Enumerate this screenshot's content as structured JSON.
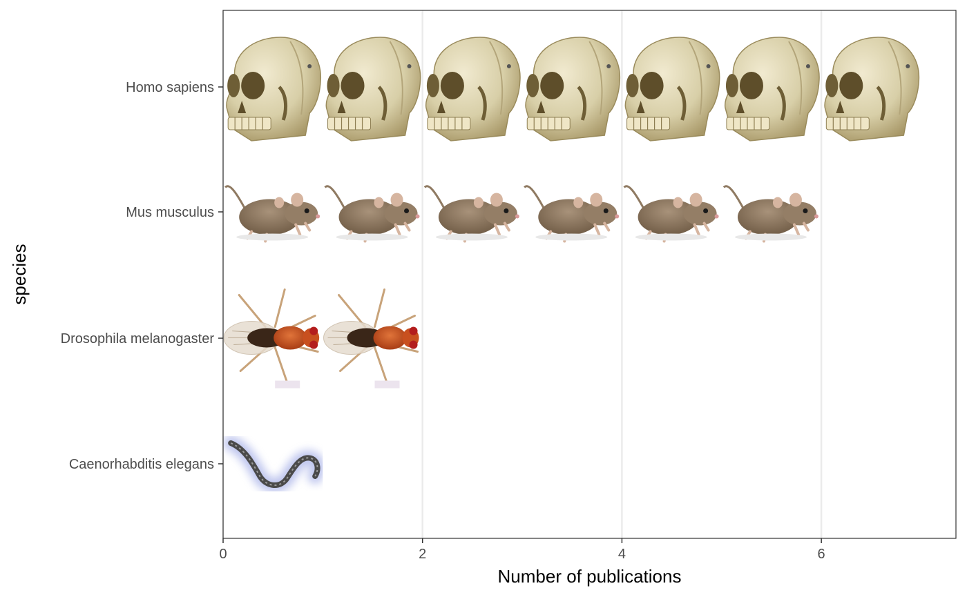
{
  "chart_data": {
    "type": "bar",
    "orientation": "horizontal",
    "style": "pictogram",
    "title": "",
    "xlabel": "Number of publications",
    "ylabel": "species",
    "xlim": [
      0,
      7.35
    ],
    "x_ticks": [
      0,
      2,
      4,
      6
    ],
    "grid": "vertical major lines",
    "legend": "none",
    "categories": [
      "Homo sapiens",
      "Mus musculus",
      "Drosophila melanogaster",
      "Caenorhabditis elegans"
    ],
    "values": [
      7,
      6,
      2,
      1
    ],
    "icons": [
      "skull-icon",
      "mouse-icon",
      "fruit-fly-icon",
      "worm-icon"
    ]
  },
  "colors": {
    "skull": "#d8cfa8",
    "skull_shadow": "#a89868",
    "mouse": "#8f7a62",
    "mouse_belly": "#d9c7b3",
    "fly_body": "#c8501f",
    "fly_wing": "#e6dccf",
    "worm": "#4a4a4a",
    "worm_glow": "#8a97e0",
    "grid": "#ebebeb",
    "axis": "#333333"
  }
}
